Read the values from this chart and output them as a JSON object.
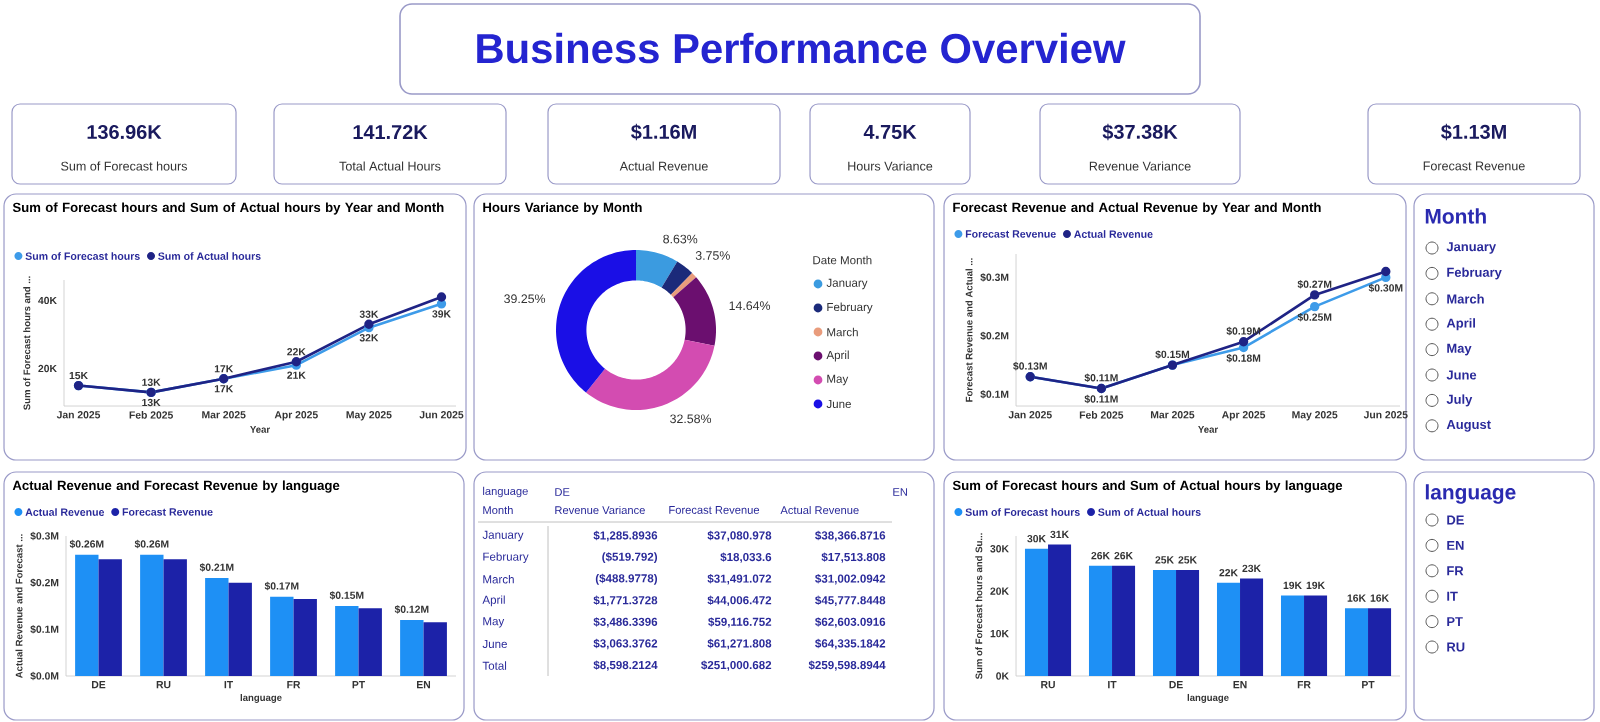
{
  "chart_data": [
    {
      "type": "other",
      "title": "Business Performance Overview",
      "annotations": [
        "136.96K",
        "Sum of Forecast hours",
        "141.72K",
        "Total Actual Hours",
        "$1.16M",
        "Actual Revenue",
        "4.75K",
        "Hours Variance",
        "$37.38K",
        "Revenue Variance",
        "$1.13M",
        "Forecast Revenue"
      ]
    },
    {
      "type": "line",
      "title": "Sum of Forecast hours and Sum of Actual hours by Year and Month",
      "xlabel": "Year",
      "ylabel": "Sum of Forecast hours and ...",
      "categories": [
        "Jan 2025",
        "Feb 2025",
        "Mar 2025",
        "Apr 2025",
        "May 2025",
        "Jun 2025"
      ],
      "ylim": [
        9000,
        46000
      ],
      "yticks": [
        {
          "value": 20000,
          "label": "20K"
        },
        {
          "value": 40000,
          "label": "40K"
        }
      ],
      "legend": "top left",
      "marker": "circle",
      "series": [
        {
          "name": "Sum of Forecast hours",
          "color": "#3d9be9",
          "values": [
            15000,
            13000,
            17000,
            21000,
            32000,
            39000
          ],
          "value_labels": [
            "15K",
            "13K",
            "17K",
            "21K",
            "32K",
            "39K"
          ]
        },
        {
          "name": "Sum of Actual hours",
          "color": "#1f2385",
          "values": [
            15000,
            13000,
            17000,
            22000,
            33000,
            41000
          ],
          "value_labels": [
            null,
            "13K",
            "17K",
            "22K",
            "33K",
            null
          ]
        }
      ]
    },
    {
      "type": "donut",
      "title": "Hours Variance by Month",
      "legend_title": "Date Month",
      "legend": "right",
      "categories": [
        "January",
        "February",
        "March",
        "April",
        "May",
        "June"
      ],
      "values": [
        8.63,
        3.75,
        1.15,
        14.64,
        32.58,
        39.25
      ],
      "colors": [
        "#3b9be0",
        "#1b2a7a",
        "#e99c7c",
        "#6b0f6f",
        "#d34cb1",
        "#1a0fe6"
      ],
      "value_labels": [
        "8.63%",
        "3.75%",
        null,
        "14.64%",
        "32.58%",
        "39.25%"
      ]
    },
    {
      "type": "line",
      "title": "Forecast Revenue and Actual Revenue by Year and Month",
      "xlabel": "Year",
      "ylabel": "Forecast Revenue and Actual ...",
      "categories": [
        "Jan 2025",
        "Feb 2025",
        "Mar 2025",
        "Apr 2025",
        "May 2025",
        "Jun 2025"
      ],
      "ylim": [
        0.08,
        0.34
      ],
      "yticks": [
        {
          "value": 0.1,
          "label": "$0.1M"
        },
        {
          "value": 0.2,
          "label": "$0.2M"
        },
        {
          "value": 0.3,
          "label": "$0.3M"
        }
      ],
      "legend": "top left",
      "marker": "circle",
      "series": [
        {
          "name": "Forecast Revenue",
          "color": "#3d9be9",
          "values": [
            0.13,
            0.11,
            0.15,
            0.18,
            0.25,
            0.3
          ],
          "value_labels": [
            "$0.13M",
            "$0.11M",
            "$0.15M",
            "$0.18M",
            "$0.25M",
            "$0.30M"
          ]
        },
        {
          "name": "Actual Revenue",
          "color": "#1f2385",
          "values": [
            0.13,
            0.11,
            0.15,
            0.19,
            0.27,
            0.31
          ],
          "value_labels": [
            null,
            "$0.11M",
            null,
            "$0.19M",
            "$0.27M",
            null
          ]
        }
      ]
    },
    {
      "type": "other",
      "title": "Month",
      "categories": [
        "January",
        "February",
        "March",
        "April",
        "May",
        "June",
        "July",
        "August"
      ]
    },
    {
      "type": "bar",
      "title": "Actual Revenue and Forecast Revenue by language",
      "xlabel": "language",
      "ylabel": "Actual Revenue and Forecast ...",
      "categories": [
        "DE",
        "RU",
        "IT",
        "FR",
        "PT",
        "EN"
      ],
      "ylim": [
        0,
        0.3
      ],
      "yticks": [
        {
          "value": 0,
          "label": "$0.0M"
        },
        {
          "value": 0.1,
          "label": "$0.1M"
        },
        {
          "value": 0.2,
          "label": "$0.2M"
        },
        {
          "value": 0.3,
          "label": "$0.3M"
        }
      ],
      "legend": "top left",
      "series": [
        {
          "name": "Actual Revenue",
          "color": "#1e90f5",
          "values": [
            0.26,
            0.26,
            0.21,
            0.17,
            0.15,
            0.12
          ],
          "value_labels": [
            "$0.26M",
            "$0.26M",
            "$0.21M",
            "$0.17M",
            "$0.15M",
            "$0.12M"
          ]
        },
        {
          "name": "Forecast Revenue",
          "color": "#1c22a8",
          "values": [
            0.25,
            0.25,
            0.2,
            0.165,
            0.145,
            0.115
          ]
        }
      ]
    },
    {
      "type": "other",
      "annotations": [
        "language",
        "Month",
        "DE",
        "EN"
      ],
      "categories": [
        "Revenue Variance",
        "Forecast Revenue",
        "Actual Revenue"
      ],
      "y_categories": [
        "January",
        "February",
        "March",
        "April",
        "May",
        "June",
        "Total"
      ],
      "cell_labels": [
        [
          "$1,285.8936",
          "$37,080.978",
          "$38,366.8716"
        ],
        [
          "($519.792)",
          "$18,033.6",
          "$17,513.808"
        ],
        [
          "($488.9778)",
          "$31,491.072",
          "$31,002.0942"
        ],
        [
          "$1,771.3728",
          "$44,006.472",
          "$45,777.8448"
        ],
        [
          "$3,486.3396",
          "$59,116.752",
          "$62,603.0916"
        ],
        [
          "$3,063.3762",
          "$61,271.808",
          "$64,335.1842"
        ],
        [
          "$8,598.2124",
          "$251,000.682",
          "$259,598.8944"
        ]
      ]
    },
    {
      "type": "bar",
      "title": "Sum of Forecast hours and Sum of Actual hours by language",
      "xlabel": "language",
      "ylabel": "Sum of Forecast hours and Su...",
      "categories": [
        "RU",
        "IT",
        "DE",
        "EN",
        "FR",
        "PT"
      ],
      "ylim": [
        0,
        33000
      ],
      "yticks": [
        {
          "value": 0,
          "label": "0K"
        },
        {
          "value": 10000,
          "label": "10K"
        },
        {
          "value": 20000,
          "label": "20K"
        },
        {
          "value": 30000,
          "label": "30K"
        }
      ],
      "legend": "top left",
      "series": [
        {
          "name": "Sum of Forecast hours",
          "color": "#1e90f5",
          "values": [
            30000,
            26000,
            25000,
            22000,
            19000,
            16000
          ],
          "value_labels": [
            "30K",
            "26K",
            "25K",
            "22K",
            "19K",
            "16K"
          ]
        },
        {
          "name": "Sum of Actual hours",
          "color": "#1c22a8",
          "values": [
            31000,
            26000,
            25000,
            23000,
            19000,
            16000
          ],
          "value_labels": [
            "31K",
            "26K",
            "25K",
            "23K",
            "19K",
            "16K"
          ]
        }
      ]
    },
    {
      "type": "other",
      "title": "language",
      "categories": [
        "DE",
        "EN",
        "FR",
        "IT",
        "PT",
        "RU"
      ]
    }
  ]
}
